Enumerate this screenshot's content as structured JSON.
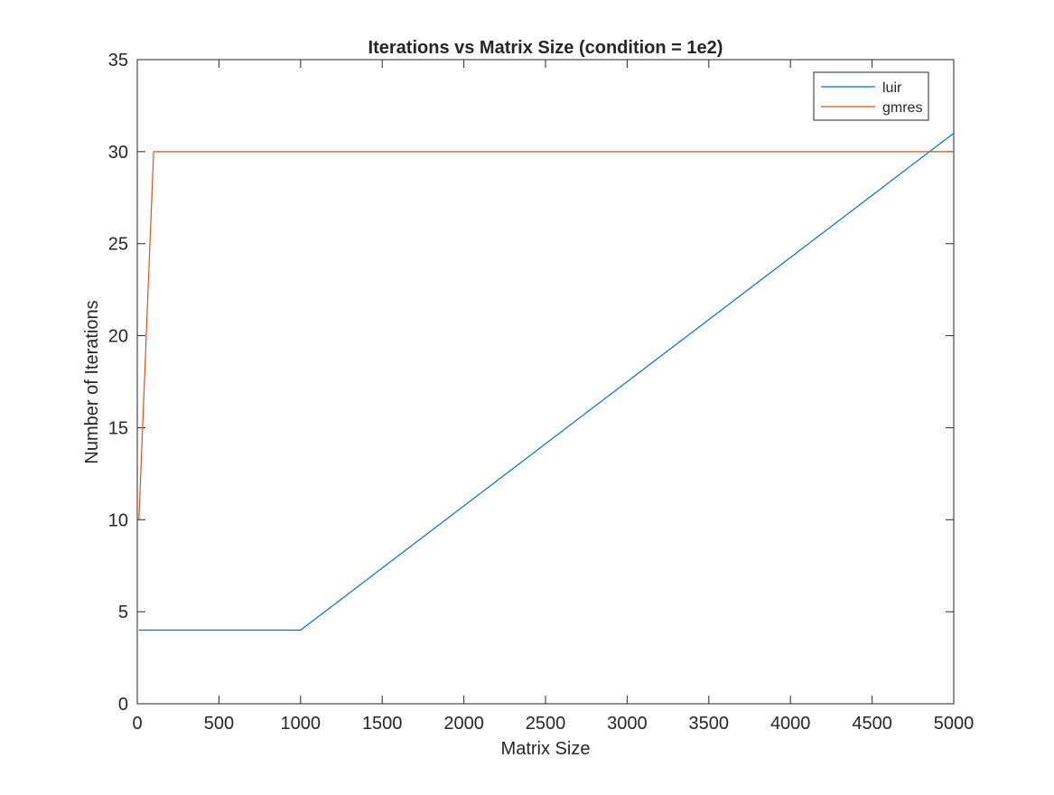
{
  "chart_data": {
    "type": "line",
    "title": "Iterations vs Matrix Size (condition = 1e2)",
    "xlabel": "Matrix Size",
    "ylabel": "Number of Iterations",
    "xlim": [
      0,
      5000
    ],
    "ylim": [
      0,
      35
    ],
    "xticks": [
      0,
      500,
      1000,
      1500,
      2000,
      2500,
      3000,
      3500,
      4000,
      4500,
      5000
    ],
    "yticks": [
      0,
      5,
      10,
      15,
      20,
      25,
      30,
      35
    ],
    "xtick_labels": [
      "0",
      "500",
      "1000",
      "1500",
      "2000",
      "2500",
      "3000",
      "3500",
      "4000",
      "4500",
      "5000"
    ],
    "ytick_labels": [
      "0",
      "5",
      "10",
      "15",
      "20",
      "25",
      "30",
      "35"
    ],
    "grid": false,
    "legend_position": "top-right",
    "series": [
      {
        "name": "luir",
        "color": "#0072BD",
        "x": [
          10,
          1000,
          5000
        ],
        "y": [
          4,
          4,
          31
        ]
      },
      {
        "name": "gmres",
        "color": "#D95319",
        "x": [
          10,
          100,
          5000
        ],
        "y": [
          10,
          30,
          30
        ]
      }
    ]
  }
}
